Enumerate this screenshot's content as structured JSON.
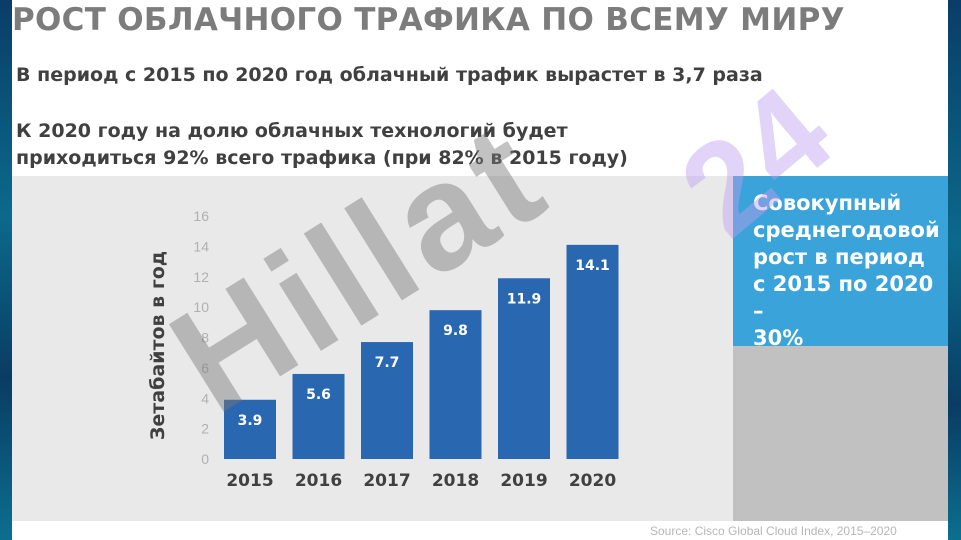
{
  "slide": {
    "title": "РОСТ ОБЛАЧНОГО ТРАФИКА ПО ВСЕМУ МИРУ",
    "subtitle1": "В период с 2015 по 2020 год облачный трафик вырастет в 3,7 раза",
    "subtitle2_line1": "К 2020 году на долю облачных технологий будет",
    "subtitle2_line2": "приходиться 92% всего трафика (при 82% в 2015 году)",
    "callout": "Совокупный\nсреднегодовой\nрост в период\nс 2015 по 2020 –\n30%",
    "source": "Source: Cisco Global Cloud Index, 2015–2020",
    "watermark_gray": "Hillat",
    "watermark_purple": "24"
  },
  "colors": {
    "bar": "#2a67b1",
    "callout_blue": "#3aa3d9",
    "callout_gray": "#c1c1c1",
    "panel": "#e9e9e9"
  },
  "chart_data": {
    "type": "bar",
    "categories": [
      "2015",
      "2016",
      "2017",
      "2018",
      "2019",
      "2020"
    ],
    "values": [
      3.9,
      5.6,
      7.7,
      9.8,
      11.9,
      14.1
    ],
    "data_labels": [
      "3.9",
      "5.6",
      "7.7",
      "9.8",
      "11.9",
      "14.1"
    ],
    "ylabel": "Зетабайтов в год",
    "xlabel": "",
    "ylim": [
      0,
      16
    ],
    "yticks": [
      0,
      2,
      4,
      6,
      8,
      10,
      12,
      14,
      16
    ],
    "grid": false,
    "legend": "none"
  }
}
